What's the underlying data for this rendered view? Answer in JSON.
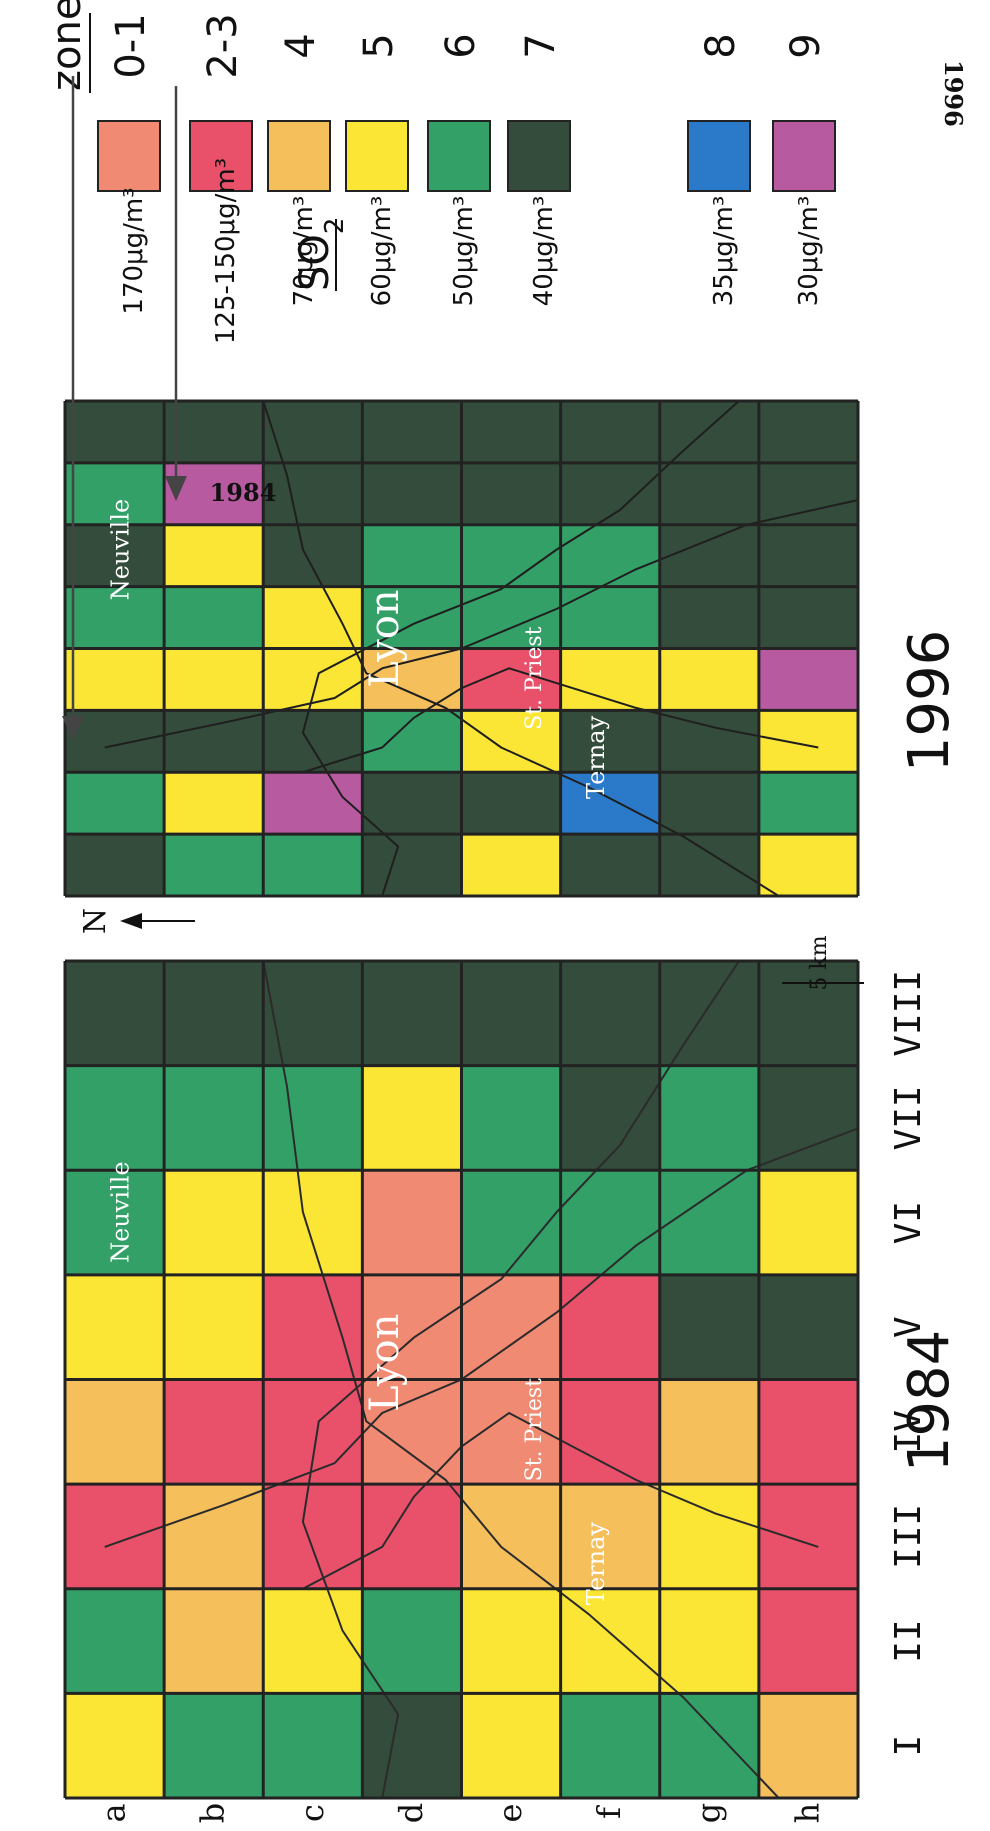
{
  "maps": [
    {
      "year_label": "1984",
      "columns": [
        "a",
        "b",
        "c",
        "d",
        "e",
        "f",
        "g",
        "h"
      ],
      "rows": [
        "I",
        "II",
        "III",
        "IV",
        "V",
        "VI",
        "VII",
        "VIII"
      ],
      "places": [
        "Neuville",
        "Lyon",
        "St. Priest",
        "Ternay"
      ],
      "grid": [
        [
          "5",
          "6",
          "2-3",
          "4",
          "5",
          "6",
          "6",
          "7"
        ],
        [
          "6",
          "4",
          "4",
          "2-3",
          "5",
          "5",
          "6",
          "7"
        ],
        [
          "6",
          "5",
          "2-3",
          "2-3",
          "2-3",
          "5",
          "6",
          "7"
        ],
        [
          "7",
          "6",
          "2-3",
          "0-1",
          "0-1",
          "0-1",
          "5",
          "7"
        ],
        [
          "5",
          "5",
          "4",
          "0-1",
          "0-1",
          "6",
          "6",
          "7"
        ],
        [
          "6",
          "5",
          "4",
          "2-3",
          "2-3",
          "6",
          "7",
          "7"
        ],
        [
          "6",
          "5",
          "5",
          "4",
          "7",
          "6",
          "6",
          "7"
        ],
        [
          "4",
          "2-3",
          "2-3",
          "2-3",
          "7",
          "5",
          "7",
          "7"
        ]
      ]
    },
    {
      "year_label": "1996",
      "columns": [
        "a",
        "b",
        "c",
        "d",
        "e",
        "f",
        "g",
        "h"
      ],
      "rows": [
        "I",
        "II",
        "III",
        "IV",
        "V",
        "VI",
        "VII",
        "VIII"
      ],
      "places": [
        "Neuville",
        "Lyon",
        "St. Priest",
        "Ternay"
      ],
      "grid": [
        [
          "7",
          "6",
          "7",
          "5",
          "6",
          "7",
          "6",
          "7"
        ],
        [
          "6",
          "5",
          "7",
          "5",
          "6",
          "5",
          "9",
          "7"
        ],
        [
          "6",
          "9",
          "7",
          "5",
          "5",
          "7",
          "7",
          "7"
        ],
        [
          "7",
          "7",
          "6",
          "4",
          "6",
          "6",
          "7",
          "7"
        ],
        [
          "5",
          "7",
          "5",
          "2-3",
          "6",
          "6",
          "7",
          "7"
        ],
        [
          "7",
          "8",
          "7",
          "5",
          "6",
          "6",
          "7",
          "7"
        ],
        [
          "7",
          "7",
          "7",
          "5",
          "7",
          "7",
          "7",
          "7"
        ],
        [
          "5",
          "6",
          "5",
          "9",
          "7",
          "7",
          "7",
          "7"
        ]
      ]
    }
  ],
  "north_label": "N",
  "scale_label": "5 km",
  "legend": {
    "so2_header": "SO",
    "so2_subscript": "2",
    "zone_header": "zone",
    "entries": [
      {
        "so2": "170μg/m³",
        "zone": "0-1",
        "color": "#f08a73"
      },
      {
        "so2": "125-150μg/m³",
        "zone": "2-3",
        "color": "#e9516b"
      },
      {
        "so2": "70μg/m³",
        "zone": "4",
        "color": "#f5bf5c"
      },
      {
        "so2": "60μg/m³",
        "zone": "5",
        "color": "#fbe636"
      },
      {
        "so2": "50μg/m³",
        "zone": "6",
        "color": "#33a067"
      },
      {
        "so2": "40μg/m³",
        "zone": "7",
        "color": "#334c3b"
      },
      {
        "so2": "35μg/m³",
        "zone": "8",
        "color": "#2b79c9"
      },
      {
        "so2": "30μg/m³",
        "zone": "9",
        "color": "#b85aa0"
      }
    ],
    "arrow_1984": "1984",
    "arrow_1996": "1996"
  }
}
